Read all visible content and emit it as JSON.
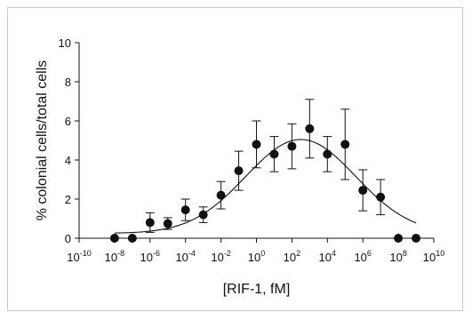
{
  "chart_data": {
    "type": "scatter",
    "title": "",
    "xlabel": "[RIF-1, fM]",
    "ylabel": "% colonial cells/total cells",
    "x_scale": "log10",
    "xlim": [
      1e-10,
      10000000000.0
    ],
    "ylim": [
      0,
      10
    ],
    "x_tick_labels": [
      {
        "base": "10",
        "exp": "-10"
      },
      {
        "base": "10",
        "exp": "-8"
      },
      {
        "base": "10",
        "exp": "-6"
      },
      {
        "base": "10",
        "exp": "-4"
      },
      {
        "base": "10",
        "exp": "-2"
      },
      {
        "base": "10",
        "exp": "0"
      },
      {
        "base": "10",
        "exp": "2"
      },
      {
        "base": "10",
        "exp": "4"
      },
      {
        "base": "10",
        "exp": "6"
      },
      {
        "base": "10",
        "exp": "8"
      },
      {
        "base": "10",
        "exp": "10"
      }
    ],
    "y_tick_labels": [
      "0",
      "2",
      "4",
      "6",
      "8",
      "10"
    ],
    "grid": false,
    "legend": "none",
    "series": [
      {
        "marker": "filled-circle",
        "color": "#111111",
        "points": [
          {
            "x": 1e-08,
            "y": 0.0,
            "err": 0.0
          },
          {
            "x": 1e-07,
            "y": 0.0,
            "err": 0.0
          },
          {
            "x": 1e-06,
            "y": 0.8,
            "err": 0.5
          },
          {
            "x": 1e-05,
            "y": 0.75,
            "err": 0.3
          },
          {
            "x": 0.0001,
            "y": 1.45,
            "err": 0.55
          },
          {
            "x": 0.001,
            "y": 1.2,
            "err": 0.4
          },
          {
            "x": 0.01,
            "y": 2.2,
            "err": 0.7
          },
          {
            "x": 0.1,
            "y": 3.45,
            "err": 1.0
          },
          {
            "x": 1.0,
            "y": 4.8,
            "err": 1.2
          },
          {
            "x": 10.0,
            "y": 4.3,
            "err": 0.9
          },
          {
            "x": 100.0,
            "y": 4.7,
            "err": 1.15
          },
          {
            "x": 1000.0,
            "y": 5.6,
            "err": 1.5
          },
          {
            "x": 10000.0,
            "y": 4.3,
            "err": 0.9
          },
          {
            "x": 100000.0,
            "y": 4.8,
            "err": 1.8
          },
          {
            "x": 1000000.0,
            "y": 2.45,
            "err": 1.05
          },
          {
            "x": 10000000.0,
            "y": 2.1,
            "err": 0.9
          },
          {
            "x": 100000000.0,
            "y": 0.0,
            "err": 0.0
          },
          {
            "x": 1000000000.0,
            "y": 0.0,
            "err": 0.0
          }
        ]
      }
    ],
    "fit_curve": {
      "type": "gaussian-in-log10x",
      "baseline": 0.25,
      "peak": 5.05,
      "center_log10": 2.5,
      "sigma_log10": 3.1
    }
  }
}
